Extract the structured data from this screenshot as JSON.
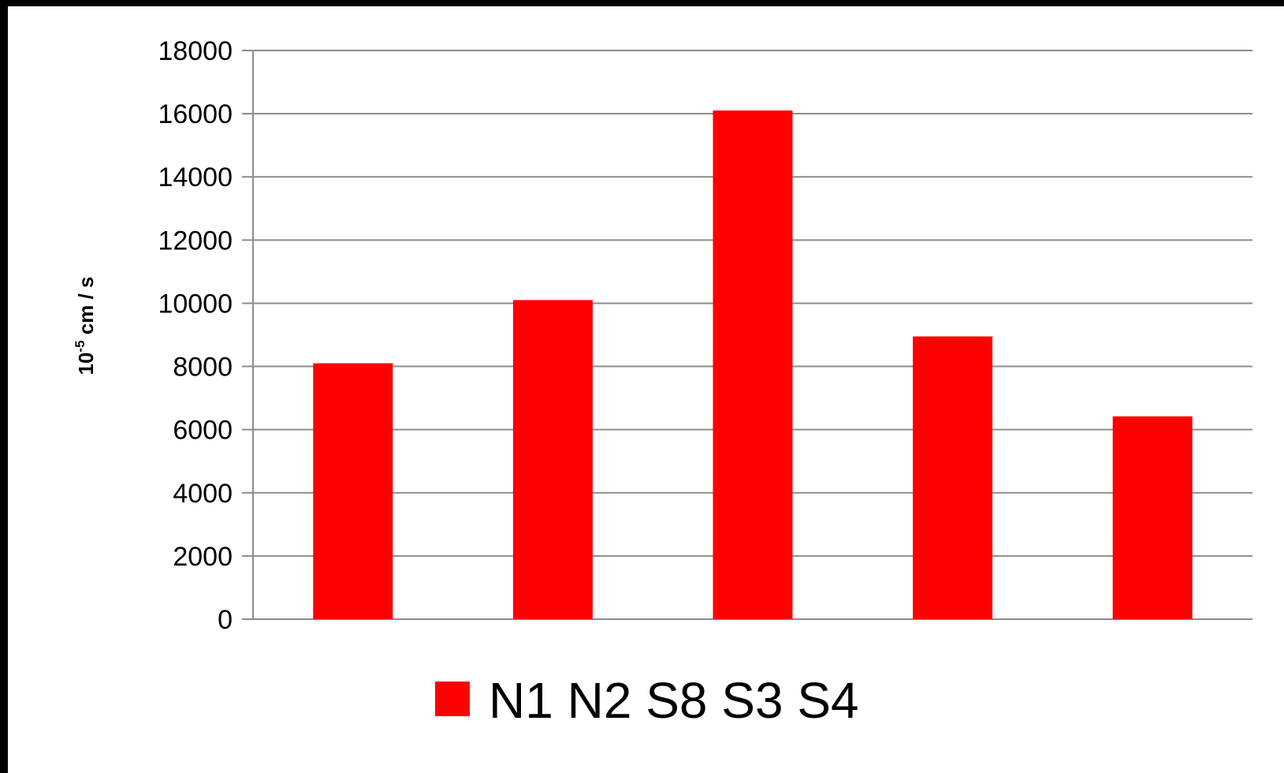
{
  "chart_data": {
    "type": "bar",
    "categories": [
      "N1",
      "N2",
      "S8",
      "S3",
      "S4"
    ],
    "values": [
      8100,
      10100,
      16100,
      8950,
      6420
    ],
    "ylabel": {
      "base": "10",
      "exponent": "-5",
      "unit": " cm / s"
    },
    "ylim": [
      0,
      18000
    ],
    "yticks": [
      0,
      2000,
      4000,
      6000,
      8000,
      10000,
      12000,
      14000,
      16000,
      18000
    ],
    "grid": true,
    "legend": {
      "placement": "bottom",
      "text": "N1 N2 S8 S3 S4"
    },
    "colors": {
      "bar": "#ff0000",
      "grid": "#8c8c8c",
      "frame": "#000000"
    }
  }
}
